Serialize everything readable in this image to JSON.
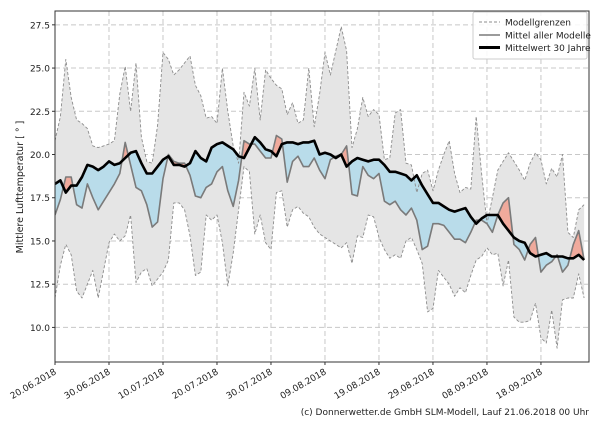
{
  "chart_data": {
    "type": "area",
    "ylabel": "Mittlere Lufttemperatur [ ° ]",
    "xlabel": "",
    "ylim": [
      8.0,
      28.3
    ],
    "xlim": [
      "20.06.2018",
      "26.09.2018"
    ],
    "yticks": [
      "10.0",
      "12.5",
      "15.0",
      "17.5",
      "20.0",
      "22.5",
      "25.0",
      "27.5"
    ],
    "xticks": [
      "20.06.2018",
      "30.06.2018",
      "10.07.2018",
      "20.07.2018",
      "30.07.2018",
      "09.08.2018",
      "19.08.2018",
      "29.08.2018",
      "08.09.2018",
      "18.09.2018"
    ],
    "grid": true,
    "legend_position": "top-right",
    "x": [
      "20.06",
      "21.06",
      "22.06",
      "23.06",
      "24.06",
      "25.06",
      "26.06",
      "27.06",
      "28.06",
      "29.06",
      "30.06",
      "01.07",
      "02.07",
      "03.07",
      "04.07",
      "05.07",
      "06.07",
      "07.07",
      "08.07",
      "09.07",
      "10.07",
      "11.07",
      "12.07",
      "13.07",
      "14.07",
      "15.07",
      "16.07",
      "17.07",
      "18.07",
      "19.07",
      "20.07",
      "21.07",
      "22.07",
      "23.07",
      "24.07",
      "25.07",
      "26.07",
      "27.07",
      "28.07",
      "29.07",
      "30.07",
      "31.07",
      "01.08",
      "02.08",
      "03.08",
      "04.08",
      "05.08",
      "06.08",
      "07.08",
      "08.08",
      "09.08",
      "10.08",
      "11.08",
      "12.08",
      "13.08",
      "14.08",
      "15.08",
      "16.08",
      "17.08",
      "18.08",
      "19.08",
      "20.08",
      "21.08",
      "22.08",
      "23.08",
      "24.08",
      "25.08",
      "26.08",
      "27.08",
      "28.08",
      "29.08",
      "30.08",
      "31.08",
      "01.09",
      "02.09",
      "03.09",
      "04.09",
      "05.09",
      "06.09",
      "07.09",
      "08.09",
      "09.09",
      "10.09",
      "11.09",
      "12.09",
      "13.09",
      "14.09",
      "15.09",
      "16.09",
      "17.09",
      "18.09",
      "19.09",
      "20.09",
      "21.09",
      "22.09",
      "23.09",
      "24.09",
      "25.09",
      "26.09"
    ],
    "series": [
      {
        "name": "Modellgrenzen",
        "role": "upper",
        "values": [
          20.8,
          22.2,
          25.5,
          23.3,
          22.0,
          21.8,
          21.5,
          20.5,
          20.4,
          20.5,
          20.6,
          20.8,
          23.5,
          25.1,
          22.5,
          25.3,
          21.0,
          19.6,
          19.5,
          21.7,
          25.9,
          25.5,
          24.6,
          24.9,
          25.3,
          25.7,
          24.0,
          23.4,
          22.1,
          22.2,
          21.8,
          25.0,
          22.5,
          20.5,
          19.5,
          23.6,
          22.8,
          25.0,
          22.0,
          24.9,
          24.4,
          24.0,
          23.8,
          22.3,
          23.0,
          21.8,
          22.0,
          25.0,
          21.6,
          23.5,
          25.9,
          24.6,
          26.0,
          27.4,
          26.0,
          20.4,
          21.5,
          23.3,
          22.2,
          22.6,
          22.3,
          19.7,
          19.8,
          22.4,
          22.6,
          19.5,
          19.4,
          17.8,
          18.9,
          19.1,
          17.9,
          19.1,
          20.0,
          20.8,
          18.9,
          17.8,
          18.1,
          18.0,
          22.2,
          18.9,
          16.0,
          17.5,
          19.1,
          19.6,
          20.1,
          19.6,
          19.1,
          18.5,
          19.5,
          20.1,
          19.7,
          18.3,
          19.2,
          18.7,
          20.0,
          15.5,
          15.2,
          16.8,
          17.1
        ]
      },
      {
        "name": "Modellgrenzen",
        "role": "lower",
        "values": [
          11.7,
          13.6,
          14.8,
          14.2,
          12.1,
          11.7,
          12.5,
          13.3,
          11.7,
          13.3,
          14.9,
          15.4,
          15.0,
          15.3,
          16.5,
          12.6,
          13.2,
          13.4,
          12.4,
          12.8,
          13.2,
          13.9,
          17.2,
          17.2,
          16.8,
          15.3,
          13.0,
          13.2,
          16.5,
          16.2,
          16.5,
          14.9,
          12.4,
          14.3,
          16.8,
          19.3,
          19.0,
          15.4,
          16.5,
          14.9,
          14.5,
          17.8,
          17.9,
          15.8,
          16.8,
          17.0,
          16.6,
          16.4,
          15.8,
          15.4,
          15.2,
          15.0,
          14.8,
          14.6,
          14.9,
          13.7,
          15.3,
          15.2,
          16.5,
          16.4,
          15.2,
          14.5,
          14.0,
          14.2,
          14.0,
          15.0,
          15.2,
          14.5,
          13.7,
          10.9,
          11.1,
          13.3,
          12.9,
          12.5,
          11.8,
          12.3,
          12.0,
          13.0,
          13.9,
          14.1,
          14.6,
          14.2,
          14.3,
          12.4,
          13.9,
          10.6,
          10.3,
          10.3,
          10.4,
          11.4,
          9.4,
          9.1,
          11.0,
          8.8,
          11.6,
          11.7,
          11.7,
          13.1,
          11.7
        ]
      },
      {
        "name": "Mittel aller Modelle",
        "values": [
          16.5,
          17.4,
          18.7,
          18.7,
          17.1,
          16.9,
          18.3,
          17.5,
          16.8,
          17.3,
          17.8,
          18.3,
          18.9,
          20.7,
          19.4,
          18.1,
          17.9,
          17.1,
          15.8,
          16.1,
          18.6,
          20.0,
          19.6,
          19.5,
          19.5,
          18.8,
          17.6,
          17.5,
          18.1,
          18.3,
          19.0,
          19.3,
          17.9,
          17.0,
          18.5,
          20.8,
          20.6,
          20.6,
          20.2,
          19.8,
          19.8,
          21.1,
          20.9,
          18.4,
          19.6,
          19.9,
          19.3,
          19.3,
          19.8,
          19.1,
          18.6,
          19.7,
          19.9,
          20.0,
          20.5,
          17.7,
          17.6,
          19.3,
          18.8,
          18.6,
          18.9,
          17.3,
          17.1,
          17.3,
          16.8,
          16.5,
          16.9,
          16.2,
          14.5,
          14.7,
          16.0,
          16.0,
          15.9,
          15.5,
          15.1,
          15.1,
          14.9,
          15.5,
          16.2,
          16.2,
          16.0,
          15.5,
          16.5,
          17.2,
          17.5,
          14.8,
          14.5,
          13.9,
          14.8,
          15.2,
          13.2,
          13.6,
          13.8,
          14.2,
          13.2,
          13.6,
          14.8,
          15.6,
          13.9
        ]
      },
      {
        "name": "Mittelwert 30 Jahre",
        "values": [
          18.3,
          18.5,
          17.8,
          18.2,
          18.2,
          18.7,
          19.4,
          19.3,
          19.1,
          19.3,
          19.6,
          19.4,
          19.5,
          19.8,
          20.1,
          20.2,
          19.5,
          18.9,
          18.9,
          19.3,
          19.7,
          19.9,
          19.4,
          19.4,
          19.3,
          19.5,
          20.2,
          19.8,
          19.6,
          20.4,
          20.6,
          20.7,
          20.5,
          20.3,
          19.9,
          19.8,
          20.4,
          21.0,
          20.7,
          20.3,
          20.2,
          19.9,
          20.6,
          20.7,
          20.7,
          20.6,
          20.7,
          20.7,
          20.8,
          20.0,
          20.1,
          20.0,
          19.8,
          20.0,
          19.3,
          19.6,
          19.8,
          19.7,
          19.6,
          19.7,
          19.7,
          19.4,
          19.0,
          19.0,
          18.9,
          18.8,
          18.5,
          18.8,
          18.2,
          17.7,
          17.2,
          17.2,
          17.0,
          16.8,
          16.7,
          16.8,
          16.9,
          16.4,
          16.0,
          16.3,
          16.5,
          16.5,
          16.5,
          16.0,
          15.6,
          15.2,
          15.0,
          14.9,
          14.3,
          14.1,
          14.2,
          14.3,
          14.1,
          14.1,
          14.1,
          14.0,
          14.0,
          14.2,
          13.9
        ]
      }
    ],
    "legend": [
      "Modellgrenzen",
      "Mittel aller Modelle",
      "Mittelwert 30 Jahre"
    ],
    "colors": {
      "range_fill": "#e5e5e5",
      "range_line": "#8c8c8c",
      "model_mean": "#7a7a7a",
      "climate_mean": "#000000",
      "below_fill": "#b9dcea",
      "above_fill": "#f0aa9c",
      "grid": "#c8c8c8"
    }
  },
  "footer": "(c) Donnerwetter.de GmbH SLM-Modell, Lauf 21.06.2018 00 Uhr"
}
